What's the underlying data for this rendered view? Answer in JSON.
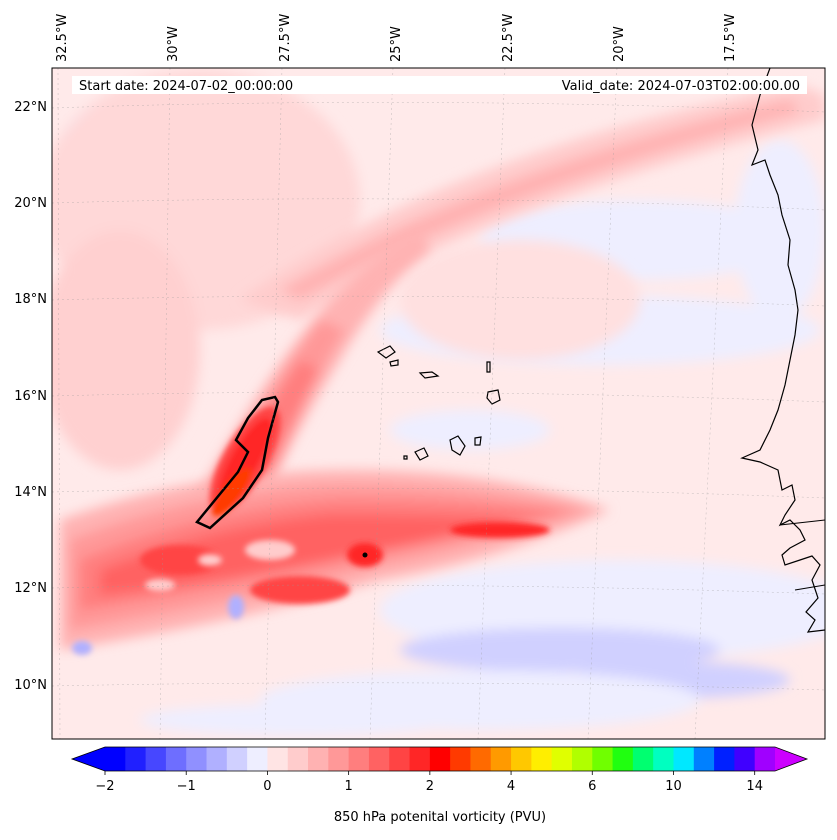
{
  "map": {
    "start_date": "Start date: 2024-07-02_00:00:00",
    "valid_date": "Valid_date: 2024-07-03T02:00:00.00",
    "longitude_labels": [
      "32.5°W",
      "30°W",
      "27.5°W",
      "25°W",
      "22.5°W",
      "20°W",
      "17.5°W"
    ],
    "latitude_labels": [
      "22°N",
      "20°N",
      "18°N",
      "16°N",
      "14°N",
      "12°N",
      "10°N"
    ],
    "field": "850 hPa potential vorticity",
    "contour_line_value_pvu": 2
  },
  "colorbar": {
    "title": "850 hPa potenital vorticity (PVU)",
    "tick_labels": [
      "−2",
      "−1",
      "0",
      "1",
      "2",
      "4",
      "6",
      "10",
      "14"
    ],
    "colors": [
      "#0000ff",
      "#2020ff",
      "#4747ff",
      "#6e6eff",
      "#9090ff",
      "#b0b0ff",
      "#d0d0ff",
      "#eeeeff",
      "#ffe4e4",
      "#ffcccc",
      "#ffb2b2",
      "#ff9898",
      "#ff7e7e",
      "#ff6262",
      "#ff4444",
      "#ff2626",
      "#ff0000",
      "#ff3a00",
      "#ff6a00",
      "#ff9a00",
      "#ffc800",
      "#ffee00",
      "#e0ff00",
      "#b0ff00",
      "#70ff00",
      "#20ff10",
      "#00ff70",
      "#00ffc0",
      "#00e8ff",
      "#0080ff",
      "#0020ff",
      "#4000ff",
      "#a000ff"
    ],
    "extend_under_color": "#0000ff",
    "extend_over_color": "#cc00ff"
  }
}
